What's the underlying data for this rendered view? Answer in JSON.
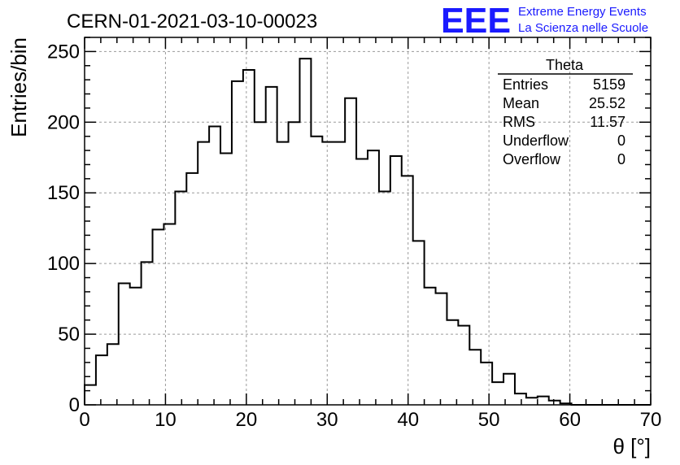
{
  "chart_data": {
    "type": "bar",
    "title": "CERN-01-2021-03-10-00023",
    "xlabel": "θ [°]",
    "ylabel": "Entries/bin",
    "xlim": [
      0,
      70
    ],
    "ylim": [
      0,
      260
    ],
    "xticks": [
      0,
      10,
      20,
      30,
      40,
      50,
      60,
      70
    ],
    "yticks": [
      0,
      50,
      100,
      150,
      200,
      250
    ],
    "grid": true,
    "bin_width": 1.4,
    "values": [
      14,
      35,
      43,
      86,
      83,
      101,
      124,
      128,
      151,
      164,
      186,
      197,
      178,
      229,
      237,
      200,
      225,
      186,
      200,
      245,
      190,
      186,
      186,
      217,
      174,
      180,
      151,
      176,
      162,
      116,
      83,
      79,
      60,
      56,
      39,
      30,
      16,
      22,
      8,
      5,
      6,
      3,
      1,
      0,
      0,
      0,
      0,
      0,
      0,
      0
    ]
  },
  "stats_box": {
    "name": "Theta",
    "rows": [
      {
        "label": "Entries",
        "value": "5159"
      },
      {
        "label": "Mean",
        "value": "25.52"
      },
      {
        "label": "RMS",
        "value": "11.57"
      },
      {
        "label": "Underflow",
        "value": "0"
      },
      {
        "label": "Overflow",
        "value": "0"
      }
    ]
  },
  "logo": {
    "mark": "EEE",
    "line1": "Extreme Energy Events",
    "line2": "La Scienza nelle Scuole",
    "color": "#1a1aff"
  }
}
